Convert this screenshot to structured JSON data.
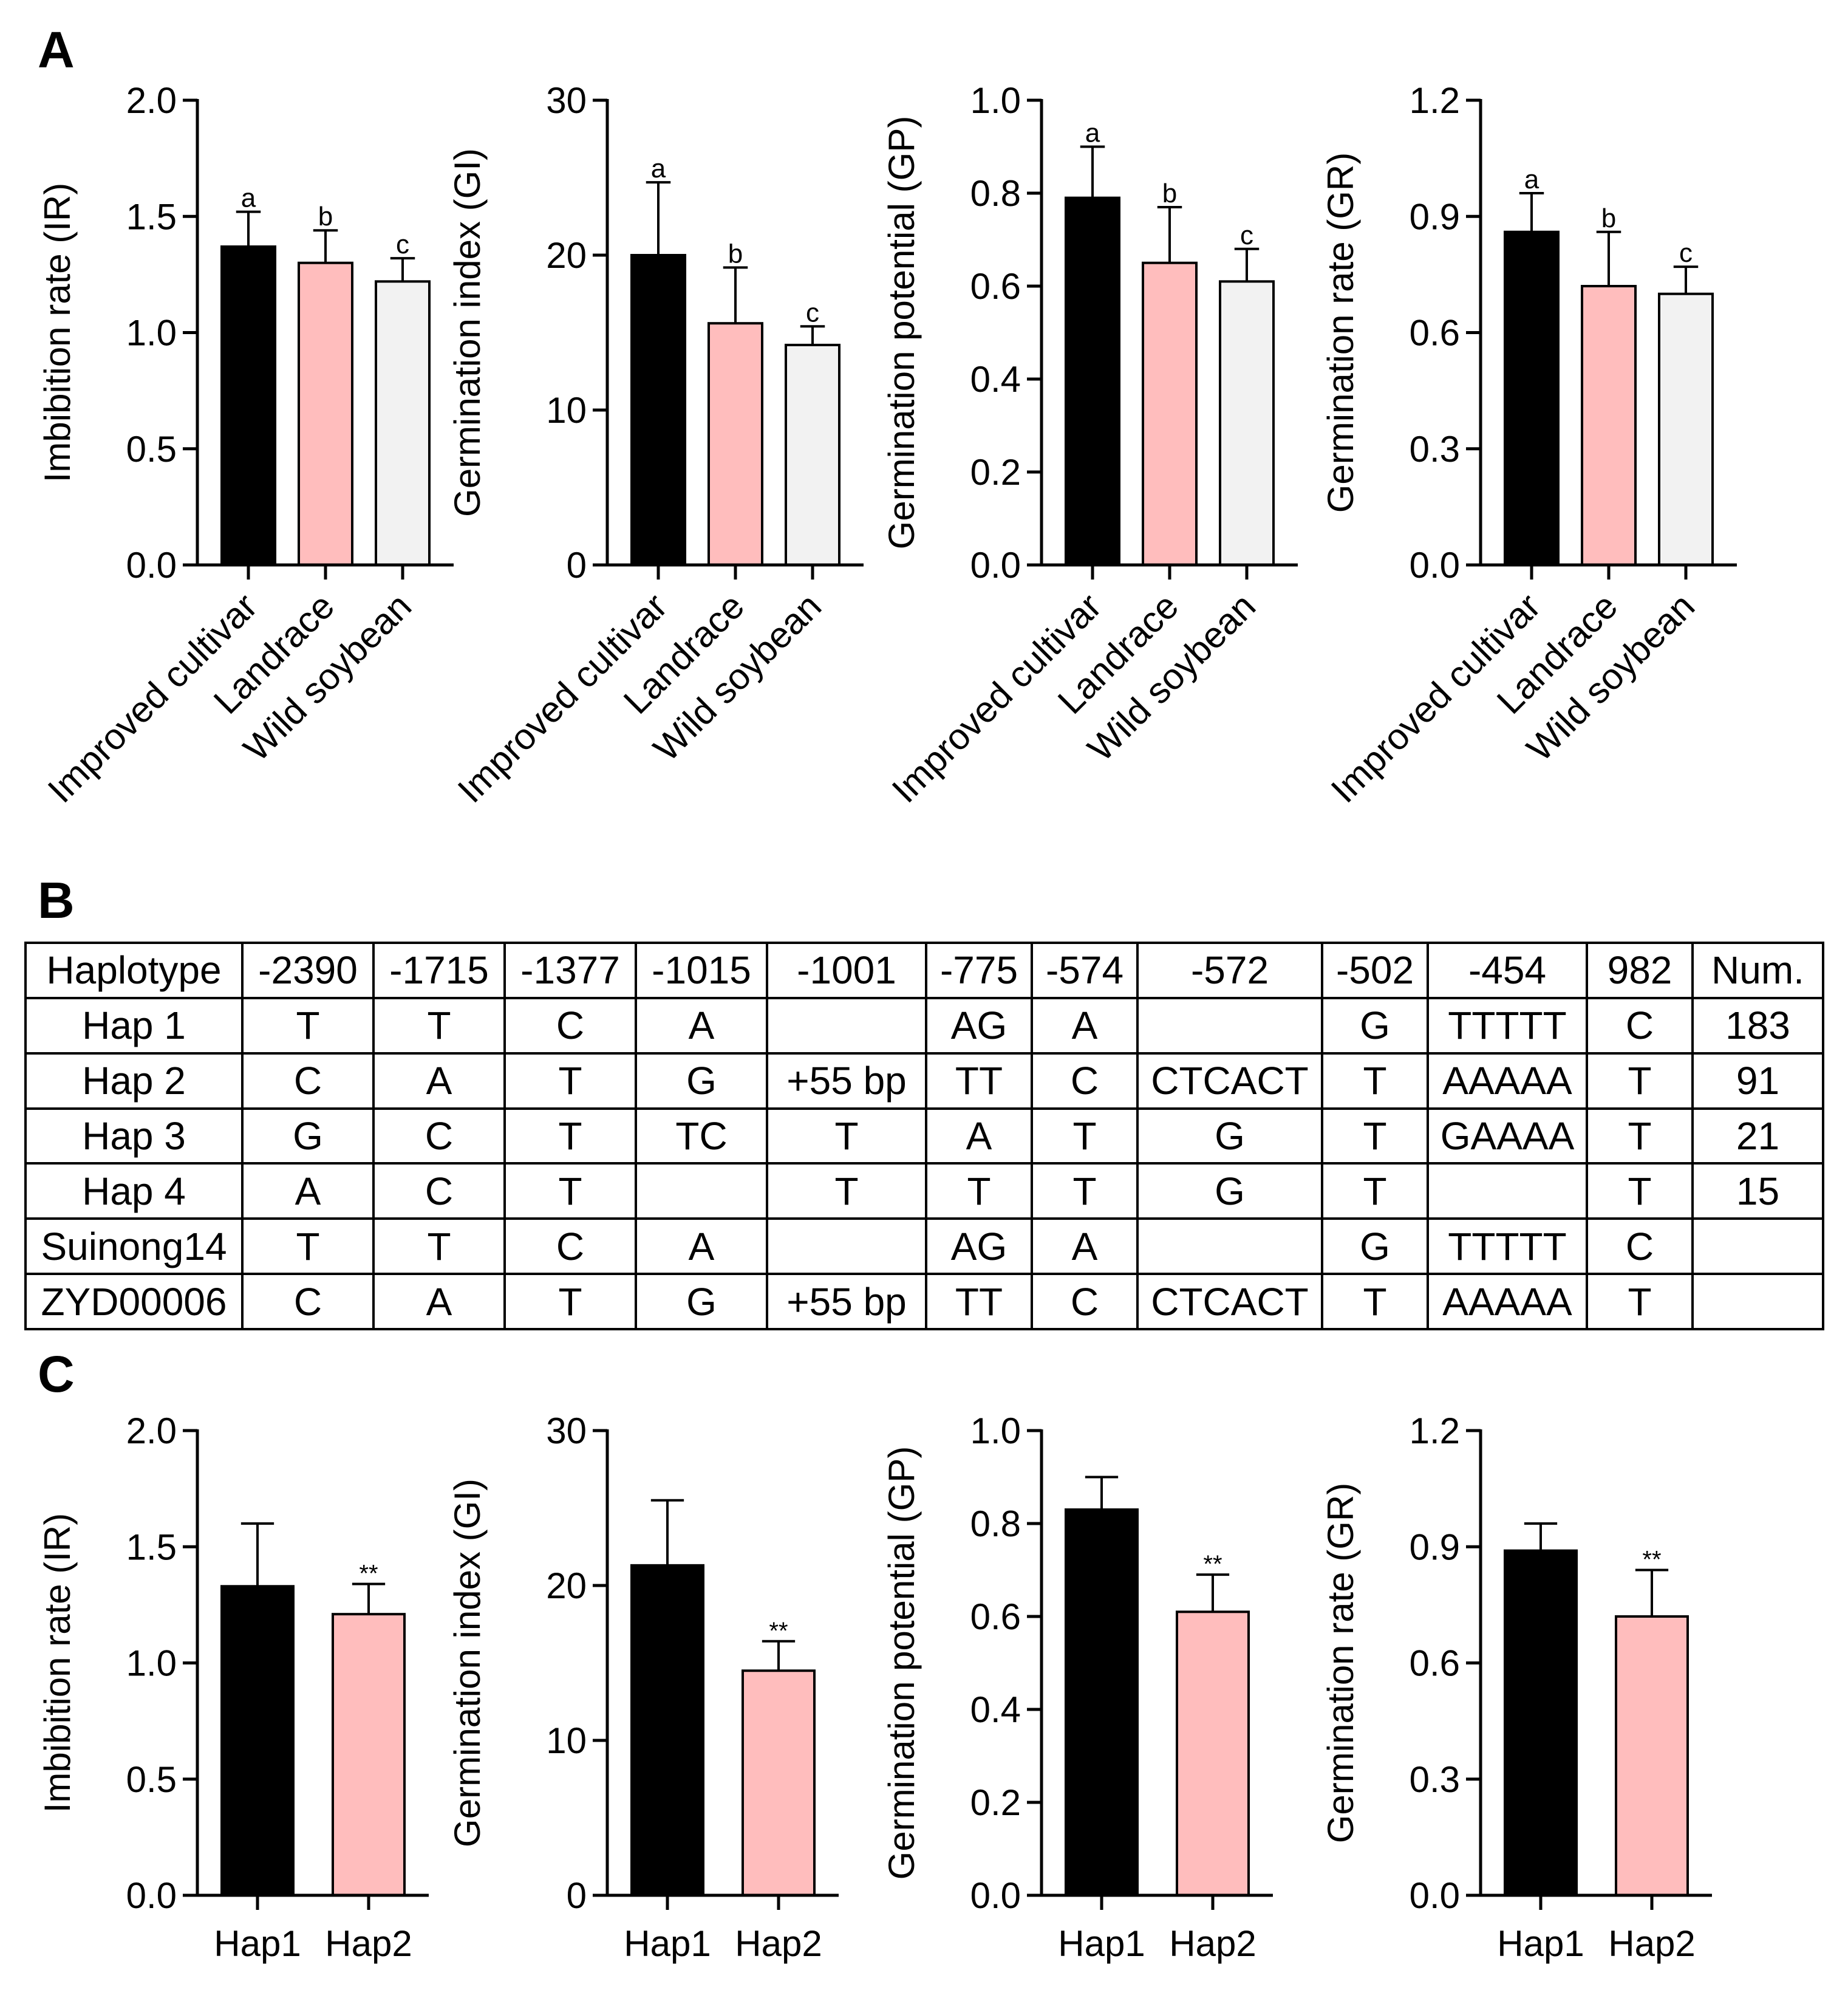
{
  "panels": {
    "A": "A",
    "B": "B",
    "C": "C"
  },
  "colors": {
    "improved_cultivar": "#000000",
    "landrace": "#ffbdbd",
    "wild_soybean": "#f2f2f2",
    "hap1": "#000000",
    "hap2": "#ffbdbd"
  },
  "chart_data": [
    {
      "panel": "A",
      "type": "bar",
      "ylabel": "Imbibition rate (IR)",
      "categories": [
        "Improved cultivar",
        "Landrace",
        "Wild soybean"
      ],
      "values": [
        1.37,
        1.3,
        1.22
      ],
      "errors": [
        0.15,
        0.14,
        0.1
      ],
      "annotations": [
        "a",
        "b",
        "c"
      ],
      "ylim": [
        0,
        2.0
      ],
      "yticks": [
        "0.0",
        "0.5",
        "1.0",
        "1.5",
        "2.0"
      ]
    },
    {
      "panel": "A",
      "type": "bar",
      "ylabel": "Germination index (GI)",
      "categories": [
        "Improved cultivar",
        "Landrace",
        "Wild soybean"
      ],
      "values": [
        20.0,
        15.6,
        14.2
      ],
      "errors": [
        4.7,
        3.6,
        1.2
      ],
      "annotations": [
        "a",
        "b",
        "c"
      ],
      "ylim": [
        0,
        30
      ],
      "yticks": [
        "0",
        "10",
        "20",
        "30"
      ]
    },
    {
      "panel": "A",
      "type": "bar",
      "ylabel": "Germination potential (GP)",
      "categories": [
        "Improved cultivar",
        "Landrace",
        "Wild soybean"
      ],
      "values": [
        0.79,
        0.65,
        0.61
      ],
      "errors": [
        0.11,
        0.12,
        0.07
      ],
      "annotations": [
        "a",
        "b",
        "c"
      ],
      "ylim": [
        0,
        1.0
      ],
      "yticks": [
        "0.0",
        "0.2",
        "0.4",
        "0.6",
        "0.8",
        "1.0"
      ]
    },
    {
      "panel": "A",
      "type": "bar",
      "ylabel": "Germination rate (GR)",
      "categories": [
        "Improved cultivar",
        "Landrace",
        "Wild soybean"
      ],
      "values": [
        0.86,
        0.72,
        0.7
      ],
      "errors": [
        0.1,
        0.14,
        0.07
      ],
      "annotations": [
        "a",
        "b",
        "c"
      ],
      "ylim": [
        0,
        1.2
      ],
      "yticks": [
        "0.0",
        "0.3",
        "0.6",
        "0.9",
        "1.2"
      ]
    },
    {
      "panel": "C",
      "type": "bar",
      "ylabel": "Imbibition rate (IR)",
      "categories": [
        "Hap1",
        "Hap2"
      ],
      "values": [
        1.33,
        1.21
      ],
      "errors": [
        0.27,
        0.13
      ],
      "annotations": [
        "",
        "**"
      ],
      "ylim": [
        0,
        2.0
      ],
      "yticks": [
        "0.0",
        "0.5",
        "1.0",
        "1.5",
        "2.0"
      ]
    },
    {
      "panel": "C",
      "type": "bar",
      "ylabel": "Germination index (GI)",
      "categories": [
        "Hap1",
        "Hap2"
      ],
      "values": [
        21.3,
        14.5
      ],
      "errors": [
        4.2,
        1.9
      ],
      "annotations": [
        "",
        "**"
      ],
      "ylim": [
        0,
        30
      ],
      "yticks": [
        "0",
        "10",
        "20",
        "30"
      ]
    },
    {
      "panel": "C",
      "type": "bar",
      "ylabel": "Germination potential (GP)",
      "categories": [
        "Hap1",
        "Hap2"
      ],
      "values": [
        0.83,
        0.61
      ],
      "errors": [
        0.07,
        0.08
      ],
      "annotations": [
        "",
        "**"
      ],
      "ylim": [
        0,
        1.0
      ],
      "yticks": [
        "0.0",
        "0.2",
        "0.4",
        "0.6",
        "0.8",
        "1.0"
      ]
    },
    {
      "panel": "C",
      "type": "bar",
      "ylabel": "Germination rate (GR)",
      "categories": [
        "Hap1",
        "Hap2"
      ],
      "values": [
        0.89,
        0.72
      ],
      "errors": [
        0.07,
        0.12
      ],
      "annotations": [
        "",
        "**"
      ],
      "ylim": [
        0,
        1.2
      ],
      "yticks": [
        "0.0",
        "0.3",
        "0.6",
        "0.9",
        "1.2"
      ]
    }
  ],
  "haplotype_table": {
    "header": [
      "Haplotype",
      "-2390",
      "-1715",
      "-1377",
      "-1015",
      "-1001",
      "-775",
      "-574",
      "-572",
      "-502",
      "-454",
      "982",
      "Num."
    ],
    "rows": [
      [
        "Hap 1",
        "T",
        "T",
        "C",
        "A",
        "",
        "AG",
        "A",
        "",
        "G",
        "TTTTT",
        "C",
        "183"
      ],
      [
        "Hap 2",
        "C",
        "A",
        "T",
        "G",
        "+55 bp",
        "TT",
        "C",
        "CTCACT",
        "T",
        "AAAAA",
        "T",
        "91"
      ],
      [
        "Hap 3",
        "G",
        "C",
        "T",
        "TC",
        "T",
        "A",
        "T",
        "G",
        "T",
        "GAAAA",
        "T",
        "21"
      ],
      [
        "Hap 4",
        "A",
        "C",
        "T",
        "",
        "T",
        "T",
        "T",
        "G",
        "T",
        "",
        "T",
        "15"
      ],
      [
        "Suinong14",
        "T",
        "T",
        "C",
        "A",
        "",
        "AG",
        "A",
        "",
        "G",
        "TTTTT",
        "C",
        ""
      ],
      [
        "ZYD00006",
        "C",
        "A",
        "T",
        "G",
        "+55 bp",
        "TT",
        "C",
        "CTCACT",
        "T",
        "AAAAA",
        "T",
        ""
      ]
    ]
  }
}
